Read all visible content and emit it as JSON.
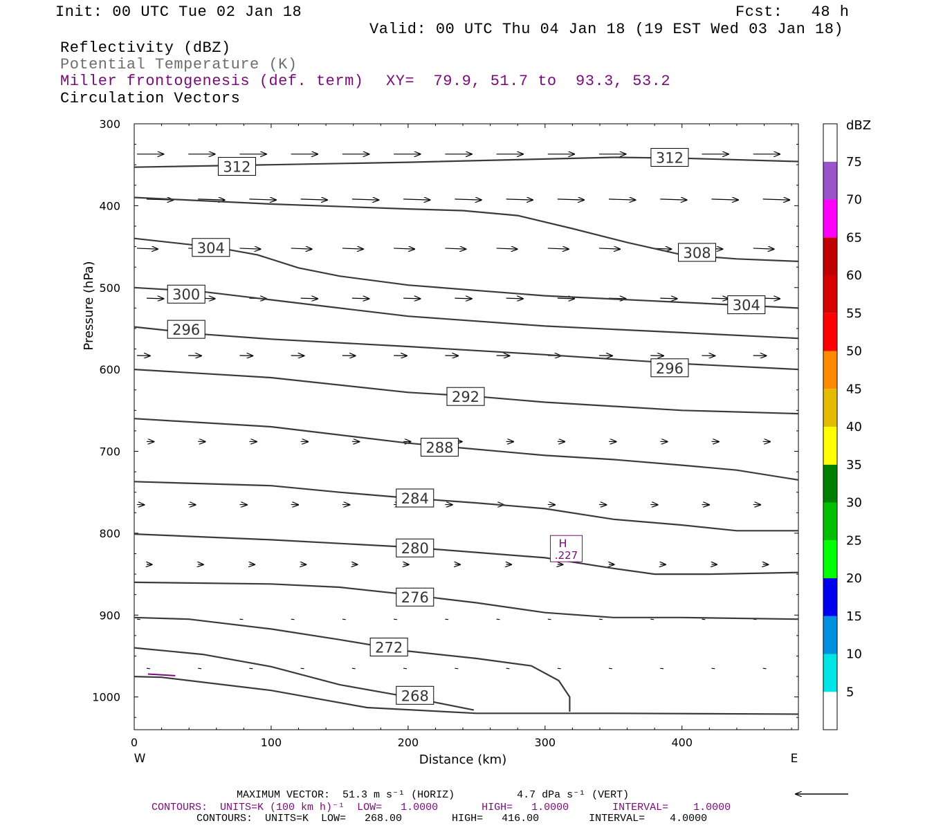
{
  "header": {
    "init": "Init: 00 UTC Tue 02 Jan 18",
    "fcst": "Fcst:   48 h",
    "valid": "Valid: 00 UTC Thu 04 Jan 18 (19 EST Wed 03 Jan 18)",
    "field1": "Reflectivity (dBZ)",
    "field2": "Potential Temperature (K)",
    "field3": "Miller frontogenesis (def. term)",
    "xy": "XY=  79.9, 51.7 to  93.3, 53.2",
    "field4": "Circulation Vectors"
  },
  "colors": {
    "purple": "#7a0a7a",
    "contour": "#3a3a3a",
    "gray_text": "#6d6d6d"
  },
  "chart_data": {
    "type": "line",
    "xlabel": "Distance (km)",
    "ylabel": "Pressure (hPa)",
    "xlim": [
      0,
      485
    ],
    "ylim": [
      1040,
      300
    ],
    "x_ticks": [
      0,
      100,
      200,
      300,
      400
    ],
    "y_ticks": [
      300,
      400,
      500,
      600,
      700,
      800,
      900,
      1000
    ],
    "x_end_labels": {
      "left": "W",
      "right": "E"
    },
    "theta_contours": [
      {
        "label": "312",
        "points": [
          [
            0,
            353
          ],
          [
            100,
            350
          ],
          [
            200,
            347
          ],
          [
            300,
            343
          ],
          [
            350,
            341
          ],
          [
            400,
            342
          ],
          [
            485,
            346
          ]
        ],
        "label_at": [
          [
            75,
            352
          ],
          [
            391,
            341
          ]
        ]
      },
      {
        "label": "308",
        "points": [
          [
            0,
            390
          ],
          [
            100,
            398
          ],
          [
            200,
            404
          ],
          [
            240,
            406
          ],
          [
            280,
            412
          ],
          [
            320,
            428
          ],
          [
            360,
            445
          ],
          [
            400,
            460
          ],
          [
            440,
            465
          ],
          [
            485,
            468
          ]
        ],
        "label_at": [
          [
            411,
            457
          ]
        ]
      },
      {
        "label": "304",
        "points": [
          [
            0,
            440
          ],
          [
            60,
            451
          ],
          [
            90,
            460
          ],
          [
            120,
            476
          ],
          [
            150,
            486
          ],
          [
            200,
            497
          ],
          [
            300,
            510
          ],
          [
            400,
            518
          ],
          [
            485,
            525
          ]
        ],
        "label_at": [
          [
            56,
            451
          ],
          [
            447,
            521
          ]
        ]
      },
      {
        "label": "300",
        "points": [
          [
            0,
            500
          ],
          [
            50,
            505
          ],
          [
            100,
            515
          ],
          [
            150,
            525
          ],
          [
            200,
            535
          ],
          [
            300,
            547
          ],
          [
            400,
            555
          ],
          [
            485,
            562
          ]
        ],
        "label_at": [
          [
            38,
            508
          ]
        ]
      },
      {
        "label": "296",
        "points": [
          [
            0,
            548
          ],
          [
            50,
            557
          ],
          [
            100,
            563
          ],
          [
            200,
            572
          ],
          [
            300,
            582
          ],
          [
            400,
            593
          ],
          [
            485,
            600
          ]
        ],
        "label_at": [
          [
            38,
            551
          ],
          [
            391,
            598
          ]
        ]
      },
      {
        "label": "292",
        "points": [
          [
            0,
            600
          ],
          [
            100,
            610
          ],
          [
            200,
            628
          ],
          [
            250,
            633
          ],
          [
            300,
            640
          ],
          [
            400,
            650
          ],
          [
            485,
            654
          ]
        ],
        "label_at": [
          [
            242,
            633
          ]
        ]
      },
      {
        "label": "288",
        "points": [
          [
            0,
            660
          ],
          [
            100,
            670
          ],
          [
            200,
            690
          ],
          [
            300,
            705
          ],
          [
            350,
            710
          ],
          [
            400,
            717
          ],
          [
            440,
            723
          ],
          [
            485,
            735
          ]
        ],
        "label_at": [
          [
            223,
            695
          ]
        ]
      },
      {
        "label": "284",
        "points": [
          [
            0,
            737
          ],
          [
            100,
            742
          ],
          [
            150,
            750
          ],
          [
            200,
            757
          ],
          [
            250,
            763
          ],
          [
            300,
            770
          ],
          [
            350,
            783
          ],
          [
            400,
            790
          ],
          [
            440,
            797
          ],
          [
            485,
            797
          ]
        ],
        "label_at": [
          [
            205,
            757
          ]
        ]
      },
      {
        "label": "280",
        "points": [
          [
            0,
            801
          ],
          [
            100,
            808
          ],
          [
            200,
            817
          ],
          [
            300,
            830
          ],
          [
            350,
            843
          ],
          [
            380,
            850
          ],
          [
            420,
            850
          ],
          [
            485,
            848
          ]
        ],
        "label_at": [
          [
            205,
            818
          ]
        ]
      },
      {
        "label": "276",
        "points": [
          [
            0,
            860
          ],
          [
            100,
            862
          ],
          [
            150,
            866
          ],
          [
            200,
            875
          ],
          [
            250,
            885
          ],
          [
            300,
            897
          ],
          [
            350,
            903
          ],
          [
            400,
            903
          ],
          [
            485,
            905
          ]
        ],
        "label_at": [
          [
            205,
            878
          ]
        ]
      },
      {
        "label": "272",
        "points": [
          [
            0,
            903
          ],
          [
            40,
            905
          ],
          [
            100,
            917
          ],
          [
            150,
            930
          ],
          [
            200,
            944
          ],
          [
            250,
            953
          ],
          [
            290,
            962
          ],
          [
            310,
            980
          ],
          [
            318,
            1000
          ],
          [
            318,
            1018
          ]
        ],
        "label_at": [
          [
            186,
            939
          ]
        ]
      },
      {
        "label": "268",
        "points": [
          [
            0,
            940
          ],
          [
            50,
            948
          ],
          [
            100,
            963
          ],
          [
            150,
            985
          ],
          [
            200,
            1000
          ],
          [
            248,
            1016
          ]
        ],
        "label_at": [
          [
            205,
            998
          ]
        ]
      },
      {
        "label": "",
        "points": [
          [
            0,
            975
          ],
          [
            20,
            976
          ],
          [
            100,
            992
          ],
          [
            170,
            1013
          ],
          [
            250,
            1020
          ],
          [
            350,
            1020
          ],
          [
            485,
            1021
          ]
        ],
        "label_at": []
      }
    ],
    "frontogenesis_marker": {
      "label": "H",
      "value": ".227",
      "at": [
        315,
        818
      ]
    },
    "vector_rows": [
      {
        "p": 337,
        "dx": 13,
        "dy": 0
      },
      {
        "p": 392,
        "dx": 13,
        "dy": 1
      },
      {
        "p": 452,
        "dx": 10,
        "dy": 1
      },
      {
        "p": 513,
        "dx": 8,
        "dy": 0.6
      },
      {
        "p": 583,
        "dx": 6,
        "dy": 0.3
      },
      {
        "p": 688,
        "dx": 3,
        "dy": 0.2
      },
      {
        "p": 765,
        "dx": 3,
        "dy": 0.3
      },
      {
        "p": 838,
        "dx": 2,
        "dy": 0.3
      },
      {
        "p": 905,
        "dx": 1,
        "dy": 0.4
      },
      {
        "p": 965,
        "dx": 1,
        "dy": 0.5
      }
    ],
    "colorbar": {
      "unit": "dBZ",
      "levels": [
        "5",
        "10",
        "15",
        "20",
        "25",
        "30",
        "35",
        "40",
        "45",
        "50",
        "55",
        "60",
        "65",
        "70",
        "75"
      ],
      "colors": [
        "#ffffff",
        "#00e5e5",
        "#0090e0",
        "#0000f0",
        "#00ff00",
        "#00c000",
        "#008000",
        "#ffff00",
        "#e6bc00",
        "#ff8c00",
        "#ff0000",
        "#d60000",
        "#c00000",
        "#ff00ff",
        "#9955c9",
        "#ffffff"
      ]
    }
  },
  "footer": {
    "max_vector": "MAXIMUM VECTOR:  51.3 m s⁻¹ (HORIZ)          4.7 dPa s⁻¹ (VERT)",
    "contours1": "CONTOURS:  UNITS=K (100 km h)⁻¹  LOW=   1.0000       HIGH=   1.0000       INTERVAL=    1.0000",
    "contours2": "CONTOURS:  UNITS=K  LOW=   268.00        HIGH=   416.00        INTERVAL=    4.0000"
  }
}
